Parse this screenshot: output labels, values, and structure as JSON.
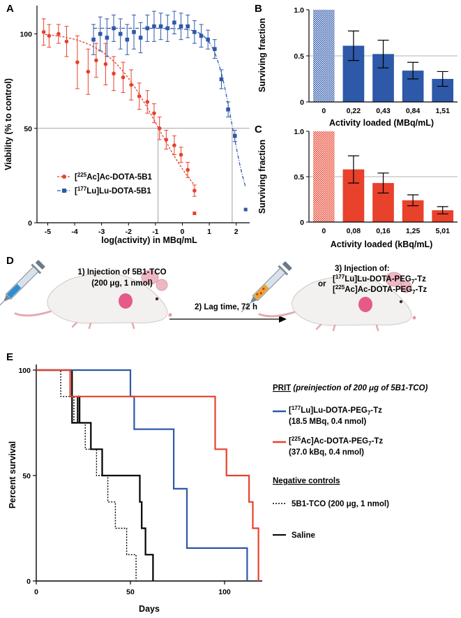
{
  "panels": {
    "a": "A",
    "b": "B",
    "c": "C",
    "d": "D",
    "e": "E"
  },
  "chart_data": [
    {
      "type": "scatter",
      "panel": "A",
      "xlabel": "log(activity) in MBq/mL",
      "ylabel": "Viability (% to control)",
      "xlim": [
        -5.4,
        2.5
      ],
      "ylim": [
        0,
        115
      ],
      "xticks": [
        "-5",
        "-4",
        "-3",
        "-2",
        "-1",
        "0",
        "1",
        "2"
      ],
      "yticks": [
        "0",
        "50",
        "100"
      ],
      "reference": {
        "y": 50,
        "x_ac": -0.9,
        "x_lu": 1.85
      },
      "series": [
        {
          "name": "[225Ac]Ac-DOTA-5B1",
          "sup": "225",
          "el": "Ac",
          "rest": "-DOTA-5B1",
          "color": "#e8412c",
          "x": [
            -5.15,
            -4.95,
            -4.6,
            -4.3,
            -3.9,
            -3.5,
            -3.2,
            -2.85,
            -2.55,
            -2.2,
            -1.9,
            -1.6,
            -1.3,
            -1.05,
            -0.85,
            -0.6,
            -0.3,
            -0.05,
            0.2,
            0.45
          ],
          "y": [
            101,
            99,
            100,
            96,
            85,
            80,
            86,
            84,
            79,
            77,
            73,
            67,
            64,
            58,
            50,
            44,
            41,
            36,
            28,
            17
          ],
          "err": [
            7,
            6,
            5,
            8,
            14,
            12,
            9,
            11,
            9,
            8,
            8,
            7,
            6,
            5,
            6,
            5,
            5,
            4,
            4,
            3
          ],
          "outlier": {
            "x": 0.45,
            "y": 5
          }
        },
        {
          "name": "[177Lu]Lu-DOTA-5B1",
          "sup": "177",
          "el": "Lu",
          "rest": "-DOTA-5B1",
          "color": "#2e58a8",
          "x": [
            -3.3,
            -3.05,
            -2.8,
            -2.55,
            -2.3,
            -2.05,
            -1.8,
            -1.55,
            -1.3,
            -1.05,
            -0.8,
            -0.55,
            -0.3,
            -0.05,
            0.2,
            0.45,
            0.7,
            0.95,
            1.2,
            1.45,
            1.7,
            1.95
          ],
          "y": [
            97,
            100,
            98,
            103,
            100,
            97,
            101,
            98,
            103,
            104,
            104,
            103,
            106,
            104,
            104,
            101,
            99,
            97,
            92,
            76,
            60,
            46
          ],
          "err": [
            8,
            9,
            10,
            7,
            8,
            8,
            9,
            8,
            7,
            8,
            7,
            7,
            6,
            7,
            6,
            6,
            6,
            5,
            5,
            5,
            4,
            3
          ],
          "outlier": {
            "x": 2.35,
            "y": 7
          }
        }
      ]
    },
    {
      "type": "bar",
      "panel": "B",
      "xlabel": "Activity loaded (MBq/mL)",
      "ylabel": "Surviving fraction",
      "ylim": [
        0,
        1.0
      ],
      "yticks": [
        "0",
        "0.5",
        "1.0"
      ],
      "categories": [
        "0",
        "0,22",
        "0,43",
        "0,84",
        "1,51"
      ],
      "values": [
        1.0,
        0.61,
        0.52,
        0.34,
        0.25
      ],
      "errors": [
        0,
        0.16,
        0.15,
        0.09,
        0.08
      ],
      "color": "#2e58a8"
    },
    {
      "type": "bar",
      "panel": "C",
      "xlabel": "Activity loaded (kBq/mL)",
      "ylabel": "Surviving fraction",
      "ylim": [
        0,
        1.0
      ],
      "yticks": [
        "0",
        "0.5",
        "1.0"
      ],
      "categories": [
        "0",
        "0,08",
        "0,16",
        "1,25",
        "5,01"
      ],
      "values": [
        1.0,
        0.58,
        0.43,
        0.24,
        0.13
      ],
      "errors": [
        0,
        0.15,
        0.11,
        0.06,
        0.04
      ],
      "color": "#e8412c"
    },
    {
      "type": "line",
      "panel": "E",
      "xlabel": "Days",
      "ylabel": "Percent survival",
      "xlim": [
        0,
        120
      ],
      "ylim": [
        0,
        100
      ],
      "xticks": [
        "0",
        "50",
        "100"
      ],
      "yticks": [
        "0",
        "50",
        "100"
      ],
      "series": [
        {
          "name": "Lu",
          "color": "#2e58a8",
          "style": "solid",
          "steps": [
            [
              0,
              100
            ],
            [
              50,
              100
            ],
            [
              50,
              87.5
            ],
            [
              52,
              87.5
            ],
            [
              52,
              72
            ],
            [
              73,
              72
            ],
            [
              73,
              43.75
            ],
            [
              80,
              43.75
            ],
            [
              80,
              15.6
            ],
            [
              112,
              15.6
            ],
            [
              112,
              0
            ]
          ]
        },
        {
          "name": "Ac",
          "color": "#e8412c",
          "style": "solid",
          "steps": [
            [
              0,
              100
            ],
            [
              18,
              100
            ],
            [
              18,
              87.5
            ],
            [
              85,
              87.5
            ],
            [
              85,
              87.5
            ],
            [
              95,
              87.5
            ],
            [
              95,
              62.5
            ],
            [
              101,
              62.5
            ],
            [
              101,
              50
            ],
            [
              113,
              50
            ],
            [
              113,
              37.5
            ],
            [
              115,
              37.5
            ],
            [
              115,
              25
            ],
            [
              118,
              25
            ],
            [
              118,
              0
            ]
          ]
        },
        {
          "name": "5B1-TCO",
          "color": "#000000",
          "style": "dotted",
          "steps": [
            [
              0,
              100
            ],
            [
              13,
              100
            ],
            [
              13,
              87.5
            ],
            [
              20,
              87.5
            ],
            [
              20,
              75
            ],
            [
              26,
              75
            ],
            [
              26,
              62.5
            ],
            [
              32,
              62.5
            ],
            [
              32,
              50
            ],
            [
              38,
              50
            ],
            [
              38,
              37.5
            ],
            [
              42,
              37.5
            ],
            [
              42,
              25
            ],
            [
              48,
              25
            ],
            [
              48,
              12.5
            ],
            [
              53,
              12.5
            ],
            [
              53,
              0
            ]
          ]
        },
        {
          "name": "Saline",
          "color": "#000000",
          "style": "solid",
          "steps": [
            [
              0,
              100
            ],
            [
              19,
              100
            ],
            [
              19,
              75
            ],
            [
              22,
              75
            ],
            [
              22,
              87.5
            ],
            [
              23,
              87.5
            ],
            [
              23,
              75
            ],
            [
              29,
              75
            ],
            [
              29,
              62.5
            ],
            [
              35,
              62.5
            ],
            [
              35,
              50
            ],
            [
              43,
              50
            ],
            [
              43,
              50
            ],
            [
              55,
              50
            ],
            [
              55,
              37.5
            ],
            [
              56,
              37.5
            ],
            [
              56,
              25
            ],
            [
              58,
              25
            ],
            [
              58,
              12.5
            ],
            [
              62,
              12.5
            ],
            [
              62,
              0
            ]
          ]
        }
      ]
    }
  ],
  "legend_a": {
    "ac_label": "[225Ac]Ac-DOTA-5B1",
    "lu_label": "[177Lu]Lu-DOTA-5B1"
  },
  "diagram_d": {
    "step1_line1": "1) Injection of 5B1-TCO",
    "step1_line2": "(200 μg, 1 nmol)",
    "step2": "2) Lag time, 72 h",
    "step3_line1": "3) Injection of:",
    "step3_or": "or",
    "step3_lu": "Lu-DOTA-PEG",
    "step3_ac": "Ac-DOTA-PEG"
  },
  "legend_e": {
    "prit_heading": "PRIT",
    "prit_note": "(preinjection of 200 μg of 5B1-TCO)",
    "lu_label_rest": "Lu-DOTA-PEG",
    "lu_detail": "(18.5 MBq, 0.4 nmol)",
    "ac_label_rest": "Ac-DOTA-PEG",
    "ac_detail": "(37.0 kBq, 0.4 nmol)",
    "neg_heading": "Negative controls",
    "tco_label": "5B1-TCO (200 μg, 1 nmol)",
    "saline_label": "Saline",
    "sub7": "7",
    "suffix_tz": "-Tz"
  },
  "colors": {
    "red": "#e8412c",
    "blue": "#2e58a8",
    "black": "#000000"
  }
}
